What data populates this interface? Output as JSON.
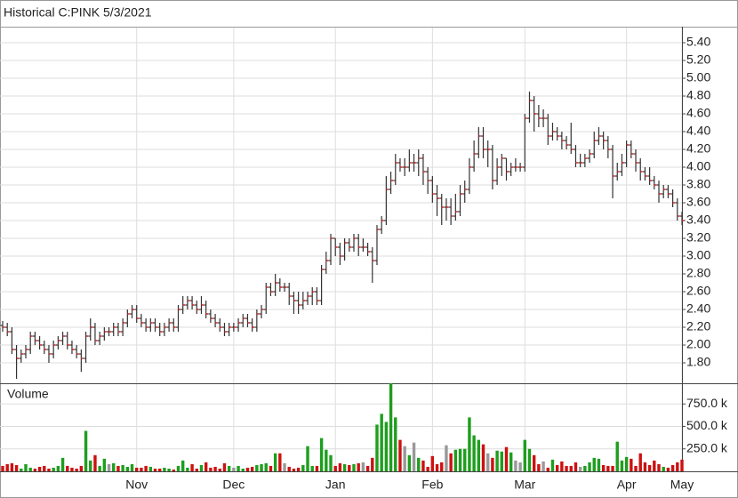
{
  "chart_data": {
    "type": "ohlc",
    "title": "Historical C:PINK 5/3/2021",
    "grid": true,
    "bar_color": "#333333",
    "close_color": "#cc2222",
    "up_color": "#1e9e1e",
    "down_color": "#cc1111",
    "flat_color": "#999999",
    "categories": [
      null,
      null,
      null,
      null,
      null,
      null,
      null,
      null,
      null,
      null,
      null,
      null,
      null,
      null,
      null,
      null,
      null,
      null,
      null,
      null,
      null,
      null,
      null,
      null,
      null,
      null,
      null,
      null,
      null,
      "Nov",
      null,
      null,
      null,
      null,
      null,
      null,
      null,
      null,
      null,
      null,
      null,
      null,
      null,
      null,
      null,
      null,
      null,
      null,
      null,
      null,
      "Dec",
      null,
      null,
      null,
      null,
      null,
      null,
      null,
      null,
      null,
      null,
      null,
      null,
      null,
      null,
      null,
      null,
      null,
      null,
      null,
      null,
      null,
      "Jan",
      null,
      null,
      null,
      null,
      null,
      null,
      null,
      null,
      null,
      null,
      null,
      null,
      null,
      null,
      null,
      null,
      null,
      null,
      null,
      null,
      "Feb",
      null,
      null,
      null,
      null,
      null,
      null,
      null,
      null,
      null,
      null,
      null,
      null,
      null,
      null,
      null,
      null,
      null,
      null,
      null,
      "Mar",
      null,
      null,
      null,
      null,
      null,
      null,
      null,
      null,
      null,
      null,
      null,
      null,
      null,
      null,
      null,
      null,
      null,
      null,
      null,
      null,
      null,
      "Apr",
      null,
      null,
      null,
      null,
      null,
      null,
      null,
      null,
      null,
      null,
      null,
      "May"
    ],
    "open": [
      2.22,
      2.2,
      2.15,
      1.95,
      1.85,
      1.9,
      1.95,
      2.1,
      2.05,
      2.0,
      1.95,
      1.9,
      2.0,
      2.05,
      2.1,
      2.0,
      1.95,
      1.9,
      1.85,
      2.1,
      2.2,
      2.05,
      2.1,
      2.15,
      2.15,
      2.2,
      2.15,
      2.25,
      2.35,
      2.4,
      2.3,
      2.25,
      2.2,
      2.25,
      2.2,
      2.15,
      2.2,
      2.25,
      2.2,
      2.4,
      2.45,
      2.5,
      2.45,
      2.4,
      2.45,
      2.35,
      2.3,
      2.25,
      2.2,
      2.15,
      2.2,
      2.2,
      2.25,
      2.3,
      2.25,
      2.2,
      2.35,
      2.4,
      2.65,
      2.6,
      2.7,
      2.65,
      2.65,
      2.55,
      2.5,
      2.45,
      2.5,
      2.55,
      2.6,
      2.5,
      2.85,
      2.95,
      3.2,
      3.1,
      3.0,
      3.15,
      3.1,
      3.2,
      3.1,
      3.1,
      3.05,
      2.95,
      3.3,
      3.4,
      3.75,
      3.85,
      4.05,
      4.0,
      4.0,
      4.05,
      4.05,
      4.1,
      3.95,
      3.85,
      3.7,
      3.65,
      3.55,
      3.55,
      3.45,
      3.5,
      3.7,
      3.75,
      4.0,
      4.15,
      4.35,
      4.2,
      4.2,
      3.85,
      4.0,
      4.1,
      3.95,
      4.0,
      4.0,
      4.0,
      4.55,
      4.75,
      4.6,
      4.55,
      4.55,
      4.35,
      4.4,
      4.35,
      4.3,
      4.25,
      4.2,
      4.05,
      4.05,
      4.1,
      4.15,
      4.3,
      4.35,
      4.3,
      4.2,
      3.9,
      3.95,
      4.05,
      4.25,
      4.15,
      4.05,
      3.95,
      3.9,
      3.85,
      3.8,
      3.7,
      3.75,
      3.7,
      3.6,
      3.45
    ],
    "high": [
      2.27,
      2.25,
      2.2,
      2.0,
      1.95,
      2.0,
      2.15,
      2.15,
      2.1,
      2.05,
      2.0,
      2.05,
      2.1,
      2.15,
      2.15,
      2.05,
      2.0,
      1.95,
      2.15,
      2.3,
      2.25,
      2.15,
      2.2,
      2.2,
      2.25,
      2.25,
      2.3,
      2.4,
      2.45,
      2.45,
      2.35,
      2.3,
      2.3,
      2.3,
      2.25,
      2.25,
      2.3,
      2.3,
      2.45,
      2.55,
      2.55,
      2.55,
      2.5,
      2.55,
      2.5,
      2.4,
      2.35,
      2.3,
      2.25,
      2.25,
      2.25,
      2.3,
      2.35,
      2.35,
      2.3,
      2.4,
      2.45,
      2.7,
      2.7,
      2.8,
      2.75,
      2.7,
      2.7,
      2.6,
      2.6,
      2.6,
      2.6,
      2.65,
      2.65,
      2.9,
      3.05,
      3.25,
      3.2,
      3.15,
      3.2,
      3.2,
      3.25,
      3.25,
      3.2,
      3.15,
      3.1,
      3.35,
      3.45,
      3.9,
      3.95,
      4.15,
      4.1,
      4.1,
      4.2,
      4.15,
      4.2,
      4.15,
      4.0,
      3.9,
      3.8,
      3.7,
      3.65,
      3.65,
      3.7,
      3.8,
      3.85,
      4.1,
      4.3,
      4.45,
      4.45,
      4.3,
      4.25,
      4.1,
      4.15,
      4.1,
      4.05,
      4.1,
      4.05,
      4.6,
      4.85,
      4.8,
      4.7,
      4.65,
      4.6,
      4.5,
      4.45,
      4.4,
      4.35,
      4.5,
      4.25,
      4.15,
      4.15,
      4.2,
      4.4,
      4.45,
      4.4,
      4.35,
      4.25,
      4.05,
      4.15,
      4.3,
      4.3,
      4.2,
      4.1,
      4.0,
      4.0,
      3.9,
      3.85,
      3.8,
      3.8,
      3.75,
      3.65,
      3.5
    ],
    "low": [
      2.15,
      2.1,
      1.9,
      1.62,
      1.8,
      1.85,
      1.9,
      2.0,
      1.95,
      1.9,
      1.8,
      1.85,
      1.95,
      2.0,
      1.95,
      1.9,
      1.85,
      1.7,
      1.8,
      2.05,
      2.0,
      2.0,
      2.05,
      2.1,
      2.1,
      2.1,
      2.1,
      2.2,
      2.3,
      2.25,
      2.2,
      2.15,
      2.15,
      2.15,
      2.1,
      2.1,
      2.15,
      2.15,
      2.15,
      2.35,
      2.4,
      2.4,
      2.35,
      2.35,
      2.3,
      2.25,
      2.2,
      2.15,
      2.1,
      2.1,
      2.15,
      2.15,
      2.2,
      2.2,
      2.15,
      2.15,
      2.3,
      2.35,
      2.55,
      2.55,
      2.6,
      2.6,
      2.45,
      2.35,
      2.35,
      2.4,
      2.45,
      2.45,
      2.45,
      2.45,
      2.8,
      2.9,
      3.0,
      2.9,
      2.95,
      3.05,
      3.05,
      3.0,
      3.05,
      3.0,
      2.7,
      2.9,
      3.25,
      3.35,
      3.7,
      3.8,
      3.95,
      3.9,
      3.95,
      3.95,
      3.9,
      3.8,
      3.7,
      3.6,
      3.45,
      3.35,
      3.4,
      3.35,
      3.4,
      3.45,
      3.6,
      3.7,
      3.95,
      4.1,
      4.1,
      4.0,
      3.75,
      3.8,
      3.9,
      3.85,
      3.9,
      3.95,
      3.95,
      3.95,
      4.5,
      4.4,
      4.45,
      4.45,
      4.25,
      4.3,
      4.3,
      4.2,
      4.2,
      4.15,
      4.0,
      4.0,
      4.0,
      4.05,
      4.1,
      4.25,
      4.2,
      4.1,
      3.65,
      3.85,
      3.9,
      4.0,
      4.1,
      3.95,
      3.85,
      3.85,
      3.8,
      3.75,
      3.6,
      3.65,
      3.65,
      3.55,
      3.4,
      3.35
    ],
    "close": [
      2.2,
      2.15,
      1.95,
      1.85,
      1.9,
      1.95,
      2.1,
      2.05,
      2.0,
      1.95,
      1.9,
      2.0,
      2.05,
      2.1,
      2.0,
      1.95,
      1.9,
      1.85,
      2.1,
      2.2,
      2.05,
      2.1,
      2.15,
      2.15,
      2.2,
      2.15,
      2.25,
      2.35,
      2.4,
      2.3,
      2.25,
      2.2,
      2.25,
      2.2,
      2.15,
      2.2,
      2.25,
      2.2,
      2.4,
      2.45,
      2.5,
      2.45,
      2.4,
      2.45,
      2.35,
      2.3,
      2.25,
      2.2,
      2.15,
      2.2,
      2.2,
      2.25,
      2.3,
      2.25,
      2.2,
      2.35,
      2.4,
      2.65,
      2.6,
      2.7,
      2.65,
      2.65,
      2.55,
      2.5,
      2.45,
      2.5,
      2.55,
      2.6,
      2.5,
      2.85,
      2.95,
      3.2,
      3.1,
      3.0,
      3.15,
      3.1,
      3.2,
      3.1,
      3.1,
      3.05,
      2.95,
      3.3,
      3.4,
      3.75,
      3.85,
      4.05,
      4.0,
      4.0,
      4.05,
      4.05,
      4.1,
      3.95,
      3.85,
      3.7,
      3.65,
      3.55,
      3.55,
      3.45,
      3.5,
      3.7,
      3.75,
      4.0,
      4.15,
      4.35,
      4.2,
      4.2,
      3.85,
      4.0,
      4.1,
      3.95,
      4.0,
      4.0,
      4.0,
      4.55,
      4.75,
      4.6,
      4.55,
      4.55,
      4.35,
      4.4,
      4.35,
      4.3,
      4.25,
      4.2,
      4.05,
      4.05,
      4.1,
      4.15,
      4.3,
      4.35,
      4.3,
      4.2,
      3.9,
      3.95,
      4.05,
      4.25,
      4.15,
      4.05,
      3.95,
      3.9,
      3.85,
      3.8,
      3.7,
      3.75,
      3.7,
      3.6,
      3.45,
      3.4
    ],
    "ylim": [
      1.58,
      5.58
    ],
    "yticks": [
      {
        "value": 1.8,
        "label": "1.80"
      },
      {
        "value": 2.0,
        "label": "2.00"
      },
      {
        "value": 2.2,
        "label": "2.20"
      },
      {
        "value": 2.4,
        "label": "2.40"
      },
      {
        "value": 2.6,
        "label": "2.60"
      },
      {
        "value": 2.8,
        "label": "2.80"
      },
      {
        "value": 3.0,
        "label": "3.00"
      },
      {
        "value": 3.2,
        "label": "3.20"
      },
      {
        "value": 3.4,
        "label": "3.40"
      },
      {
        "value": 3.6,
        "label": "3.60"
      },
      {
        "value": 3.8,
        "label": "3.80"
      },
      {
        "value": 4.0,
        "label": "4.00"
      },
      {
        "value": 4.2,
        "label": "4.20"
      },
      {
        "value": 4.4,
        "label": "4.40"
      },
      {
        "value": 4.6,
        "label": "4.60"
      },
      {
        "value": 4.8,
        "label": "4.80"
      },
      {
        "value": 5.0,
        "label": "5.00"
      },
      {
        "value": 5.2,
        "label": "5.20"
      },
      {
        "value": 5.4,
        "label": "5.40"
      }
    ],
    "volume": {
      "label": "Volume",
      "ylim": [
        0,
        970000
      ],
      "yticks": [
        {
          "value": 250000,
          "label": "250.0 k"
        },
        {
          "value": 500000,
          "label": "500.0 k"
        },
        {
          "value": 750000,
          "label": "750.0 k"
        }
      ],
      "values": [
        60000,
        80000,
        90000,
        70000,
        30000,
        80000,
        40000,
        30000,
        50000,
        60000,
        30000,
        40000,
        60000,
        150000,
        60000,
        40000,
        30000,
        60000,
        450000,
        120000,
        180000,
        60000,
        140000,
        80000,
        90000,
        60000,
        70000,
        50000,
        80000,
        40000,
        40000,
        60000,
        50000,
        30000,
        30000,
        40000,
        30000,
        20000,
        60000,
        120000,
        40000,
        80000,
        30000,
        70000,
        100000,
        40000,
        50000,
        30000,
        90000,
        60000,
        40000,
        60000,
        30000,
        40000,
        50000,
        70000,
        80000,
        90000,
        60000,
        200000,
        200000,
        90000,
        50000,
        30000,
        40000,
        70000,
        280000,
        60000,
        60000,
        370000,
        240000,
        180000,
        60000,
        90000,
        80000,
        70000,
        80000,
        90000,
        100000,
        60000,
        150000,
        520000,
        640000,
        550000,
        980000,
        600000,
        350000,
        280000,
        180000,
        320000,
        150000,
        120000,
        50000,
        170000,
        80000,
        100000,
        290000,
        200000,
        240000,
        250000,
        250000,
        600000,
        400000,
        350000,
        300000,
        200000,
        150000,
        230000,
        220000,
        270000,
        210000,
        120000,
        100000,
        350000,
        250000,
        180000,
        80000,
        110000,
        40000,
        130000,
        70000,
        110000,
        60000,
        60000,
        100000,
        50000,
        60000,
        100000,
        150000,
        140000,
        70000,
        60000,
        60000,
        330000,
        120000,
        160000,
        140000,
        60000,
        200000,
        100000,
        70000,
        120000,
        80000,
        50000,
        40000,
        70000,
        100000,
        130000
      ]
    }
  }
}
